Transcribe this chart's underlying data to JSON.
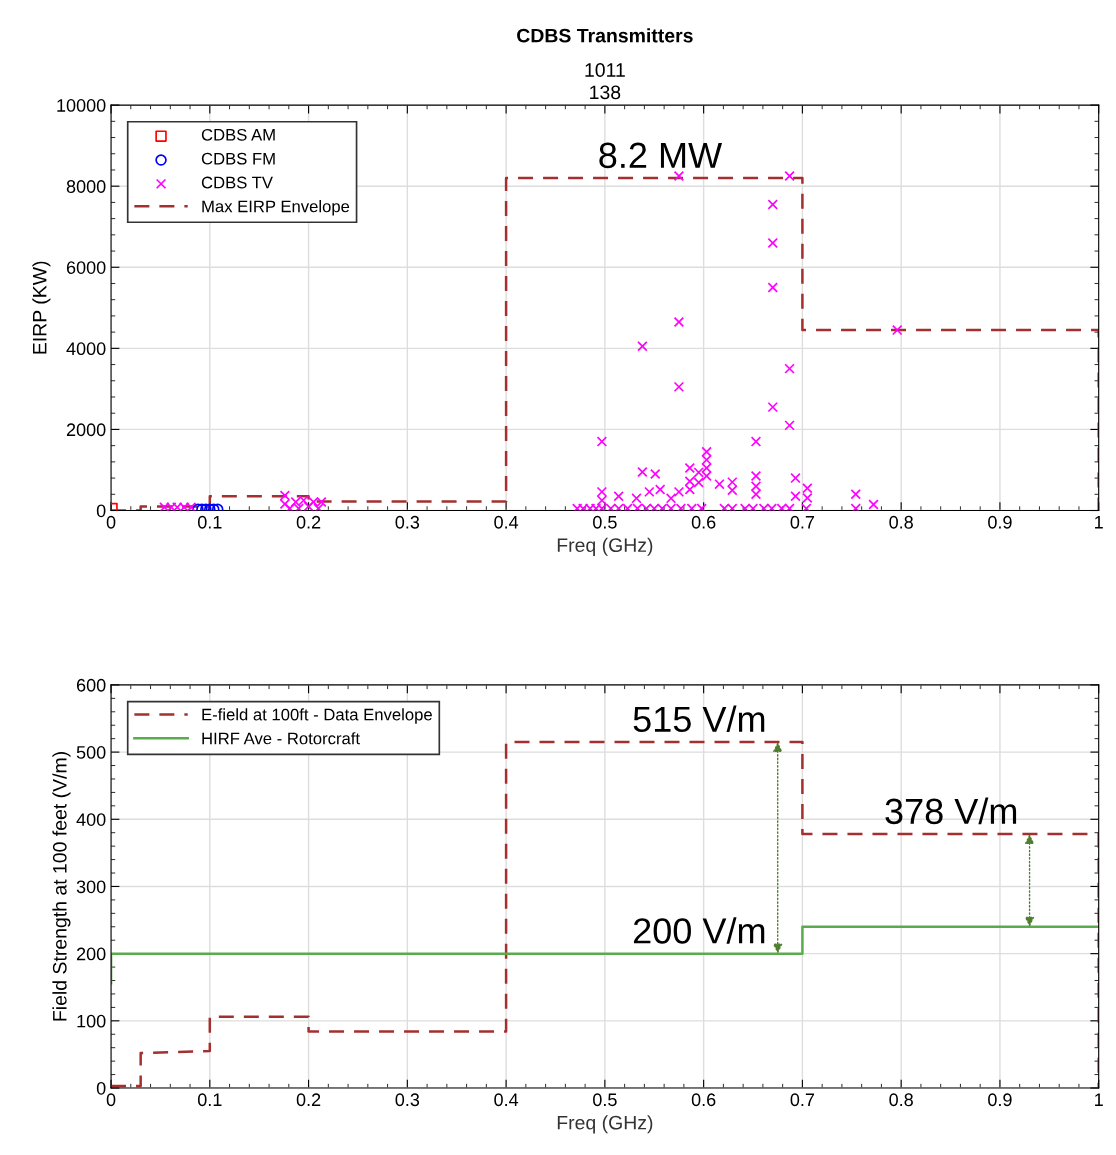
{
  "chart_data": [
    {
      "type": "scatter",
      "title": "CDBS Transmitters",
      "subtitle": "1011\n138",
      "xlabel": "Freq (GHz)",
      "ylabel": "EIRP (KW)",
      "xlim": [
        0,
        1
      ],
      "xticks": [
        0,
        0.1,
        0.2,
        0.3,
        0.4,
        0.5,
        0.6,
        0.7,
        0.8,
        0.9,
        1
      ],
      "ylim": [
        0,
        10000
      ],
      "yticks": [
        0,
        2000,
        4000,
        6000,
        8000,
        10000
      ],
      "grid": true,
      "legend": "top left",
      "annotations": [
        {
          "text": "8.2 MW",
          "x": 0.63,
          "y": 8200
        }
      ],
      "series": [
        {
          "name": "CDBS AM",
          "marker": "square",
          "color": "#ff0000",
          "x": [
            0.001
          ],
          "values": [
            50
          ]
        },
        {
          "name": "CDBS FM",
          "marker": "circle",
          "color": "#0000ff",
          "x": [
            0.088,
            0.092,
            0.096,
            0.1,
            0.104,
            0.108
          ],
          "values": [
            30,
            30,
            30,
            30,
            30,
            30
          ]
        },
        {
          "name": "CDBS TV",
          "marker": "cross",
          "color": "#ff00ff",
          "x": [
            0.054,
            0.061,
            0.067,
            0.074,
            0.081,
            0.176,
            0.176,
            0.181,
            0.187,
            0.19,
            0.195,
            0.2,
            0.205,
            0.21,
            0.213,
            0.575,
            0.687,
            0.67,
            0.67,
            0.67,
            0.575,
            0.538,
            0.575,
            0.687,
            0.67,
            0.687,
            0.796,
            0.497,
            0.653,
            0.538,
            0.551,
            0.586,
            0.603,
            0.603,
            0.603,
            0.603,
            0.616,
            0.629,
            0.629,
            0.653,
            0.653,
            0.653,
            0.693,
            0.705,
            0.705,
            0.693,
            0.754,
            0.754,
            0.772,
            0.497,
            0.497,
            0.514,
            0.532,
            0.545,
            0.556,
            0.567,
            0.575,
            0.586,
            0.586,
            0.595,
            0.595,
            0.472,
            0.478,
            0.485,
            0.491,
            0.497,
            0.506,
            0.514,
            0.523,
            0.533,
            0.542,
            0.55,
            0.558,
            0.567,
            0.577,
            0.588,
            0.598,
            0.621,
            0.629,
            0.642,
            0.65,
            0.661,
            0.669,
            0.679,
            0.687,
            0.704
          ],
          "values": [
            80,
            80,
            80,
            80,
            80,
            370,
            160,
            50,
            210,
            50,
            250,
            100,
            210,
            50,
            210,
            8250,
            8250,
            7550,
            6600,
            5500,
            4650,
            4050,
            3050,
            3500,
            2550,
            2100,
            4450,
            1700,
            1700,
            950,
            900,
            1050,
            1450,
            1250,
            1050,
            850,
            650,
            700,
            500,
            850,
            600,
            400,
            800,
            550,
            310,
            350,
            400,
            50,
            150,
            460,
            250,
            350,
            300,
            460,
            520,
            300,
            460,
            720,
            520,
            940,
            690,
            50,
            50,
            50,
            50,
            50,
            50,
            50,
            50,
            50,
            50,
            50,
            50,
            50,
            50,
            50,
            50,
            50,
            50,
            50,
            50,
            50,
            50,
            50,
            50,
            50
          ]
        },
        {
          "name": "Max EIRP Envelope",
          "type": "line",
          "line_style": "dashed",
          "color": "#a3302f",
          "x": [
            0,
            0.03,
            0.03,
            0.1,
            0.1,
            0.2,
            0.2,
            0.4,
            0.4,
            0.7,
            0.7,
            1.0,
            1.0
          ],
          "values": [
            0,
            0,
            100,
            100,
            350,
            350,
            220,
            220,
            8200,
            8200,
            4450,
            4450,
            0
          ]
        }
      ]
    },
    {
      "type": "line",
      "xlabel": "Freq (GHz)",
      "ylabel": "Field Strength at 100 feet (V/m)",
      "xlim": [
        0,
        1
      ],
      "xticks": [
        0,
        0.1,
        0.2,
        0.3,
        0.4,
        0.5,
        0.6,
        0.7,
        0.8,
        0.9,
        1
      ],
      "ylim": [
        0,
        600
      ],
      "yticks": [
        0,
        100,
        200,
        300,
        400,
        500,
        600
      ],
      "grid": true,
      "legend": "top left",
      "annotations": [
        {
          "text": "515 V/m",
          "x": 0.675,
          "y": 515
        },
        {
          "text": "200 V/m",
          "x": 0.675,
          "y": 200
        },
        {
          "text": "378 V/m",
          "x": 0.93,
          "y": 378
        }
      ],
      "series": [
        {
          "name": "E-field at 100ft - Data Envelope",
          "line_style": "dashed",
          "color": "#a3302f",
          "x": [
            0,
            0.03,
            0.03,
            0.1,
            0.1,
            0.2,
            0.2,
            0.4,
            0.4,
            0.7,
            0.7,
            1.0,
            1.0
          ],
          "values": [
            3,
            3,
            52,
            55,
            106,
            106,
            84,
            84,
            515,
            515,
            378,
            378,
            0
          ]
        },
        {
          "name": "HIRF Ave - Rotorcraft",
          "line_style": "solid",
          "color": "#5aab4e",
          "x": [
            0,
            0,
            0.7,
            0.7,
            1.0
          ],
          "values": [
            156,
            200,
            200,
            240,
            240
          ]
        }
      ]
    }
  ]
}
